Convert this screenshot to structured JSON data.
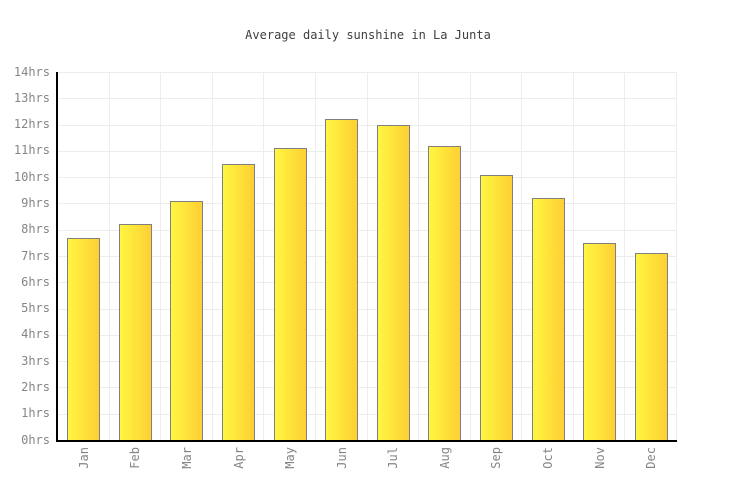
{
  "page": {
    "background_color": "#ffffff"
  },
  "chart_data": {
    "type": "bar",
    "title": "Average daily sunshine in La Junta",
    "categories": [
      "Jan",
      "Feb",
      "Mar",
      "Apr",
      "May",
      "Jun",
      "Jul",
      "Aug",
      "Sep",
      "Oct",
      "Nov",
      "Dec"
    ],
    "values": [
      7.7,
      8.2,
      9.1,
      10.5,
      11.1,
      12.2,
      12.0,
      11.2,
      10.1,
      9.2,
      7.5,
      7.1
    ],
    "unit": "hrs",
    "ylabel": "",
    "xlabel": "",
    "ylim": [
      0,
      14
    ],
    "ytick_step": 1,
    "ytick_labels": [
      "0hrs",
      "1hrs",
      "2hrs",
      "3hrs",
      "4hrs",
      "5hrs",
      "6hrs",
      "7hrs",
      "8hrs",
      "9hrs",
      "10hrs",
      "11hrs",
      "12hrs",
      "13hrs",
      "14hrs"
    ],
    "grid": true,
    "legend": false,
    "colors": {
      "bar_gradient_left": "#fff642",
      "bar_gradient_right": "#fecf33",
      "bar_border": "#808080",
      "grid_line": "#ededed",
      "axis_line": "#000000",
      "tick_label": "#858585",
      "title_text": "#404040"
    }
  }
}
